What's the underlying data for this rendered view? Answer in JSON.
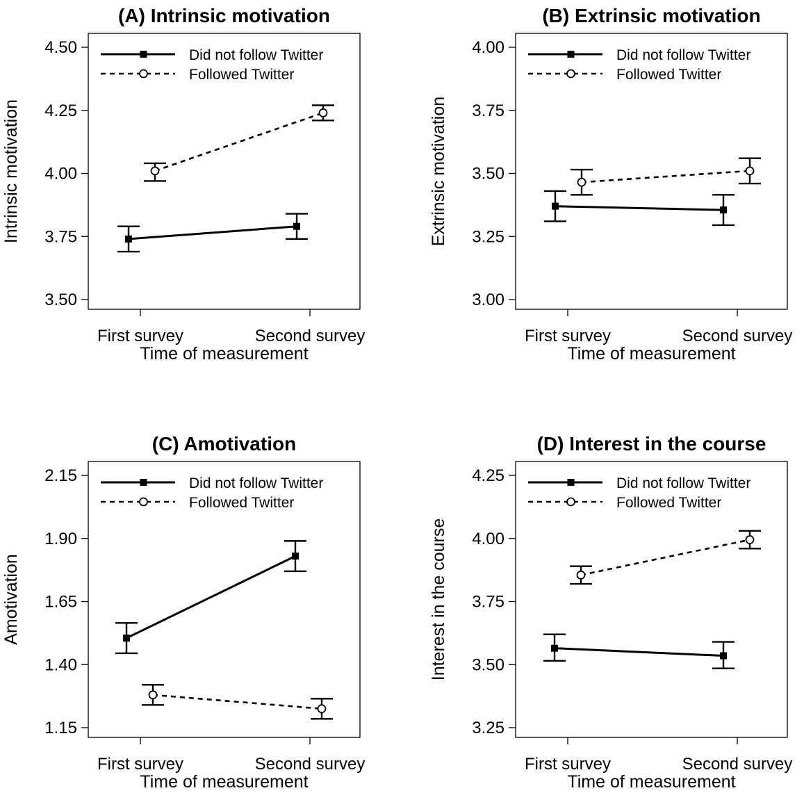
{
  "chart_data": [
    {
      "type": "line",
      "title": "(A) Intrinsic motivation",
      "xlabel": "Time of measurement",
      "ylabel": "Intrinsic motivation",
      "categories": [
        "First survey",
        "Second survey"
      ],
      "ylim": [
        3.5,
        4.5
      ],
      "yticks": [
        "3.50",
        "3.75",
        "4.00",
        "4.25",
        "4.50"
      ],
      "legend_position": "top-left",
      "series": [
        {
          "name": "Did not follow Twitter",
          "style": "solid",
          "marker": "filled-square",
          "values": [
            3.74,
            3.79
          ],
          "lower": [
            3.69,
            3.74
          ],
          "upper": [
            3.79,
            3.84
          ]
        },
        {
          "name": "Followed Twitter",
          "style": "dashed",
          "marker": "open-circle",
          "values": [
            4.01,
            4.24
          ],
          "lower": [
            3.97,
            4.21
          ],
          "upper": [
            4.04,
            4.27
          ]
        }
      ]
    },
    {
      "type": "line",
      "title": "(B) Extrinsic motivation",
      "xlabel": "Time of measurement",
      "ylabel": "Extrinsic motivation",
      "categories": [
        "First survey",
        "Second survey"
      ],
      "ylim": [
        3.0,
        4.0
      ],
      "yticks": [
        "3.00",
        "3.25",
        "3.50",
        "3.75",
        "4.00"
      ],
      "legend_position": "top-left",
      "series": [
        {
          "name": "Did not follow Twitter",
          "style": "solid",
          "marker": "filled-square",
          "values": [
            3.37,
            3.355
          ],
          "lower": [
            3.31,
            3.295
          ],
          "upper": [
            3.43,
            3.415
          ]
        },
        {
          "name": "Followed Twitter",
          "style": "dashed",
          "marker": "open-circle",
          "values": [
            3.465,
            3.51
          ],
          "lower": [
            3.415,
            3.46
          ],
          "upper": [
            3.515,
            3.56
          ]
        }
      ]
    },
    {
      "type": "line",
      "title": "(C) Amotivation",
      "xlabel": "Time of measurement",
      "ylabel": "Amotivation",
      "categories": [
        "First survey",
        "Second survey"
      ],
      "ylim": [
        1.15,
        2.15
      ],
      "yticks": [
        "1.15",
        "1.40",
        "1.65",
        "1.90",
        "2.15"
      ],
      "legend_position": "top-left",
      "series": [
        {
          "name": "Did not follow Twitter",
          "style": "solid",
          "marker": "filled-square",
          "values": [
            1.505,
            1.83
          ],
          "lower": [
            1.445,
            1.77
          ],
          "upper": [
            1.565,
            1.89
          ]
        },
        {
          "name": "Followed Twitter",
          "style": "dashed",
          "marker": "open-circle",
          "values": [
            1.28,
            1.225
          ],
          "lower": [
            1.24,
            1.185
          ],
          "upper": [
            1.32,
            1.265
          ]
        }
      ]
    },
    {
      "type": "line",
      "title": "(D) Interest in the course",
      "xlabel": "Time of measurement",
      "ylabel": "Interest in the course",
      "categories": [
        "First survey",
        "Second survey"
      ],
      "ylim": [
        3.25,
        4.25
      ],
      "yticks": [
        "3.25",
        "3.50",
        "3.75",
        "4.00",
        "4.25"
      ],
      "legend_position": "top-left",
      "series": [
        {
          "name": "Did not follow Twitter",
          "style": "solid",
          "marker": "filled-square",
          "values": [
            3.565,
            3.535
          ],
          "lower": [
            3.515,
            3.485
          ],
          "upper": [
            3.62,
            3.59
          ]
        },
        {
          "name": "Followed Twitter",
          "style": "dashed",
          "marker": "open-circle",
          "values": [
            3.855,
            3.995
          ],
          "lower": [
            3.82,
            3.96
          ],
          "upper": [
            3.89,
            4.03
          ]
        }
      ]
    }
  ]
}
